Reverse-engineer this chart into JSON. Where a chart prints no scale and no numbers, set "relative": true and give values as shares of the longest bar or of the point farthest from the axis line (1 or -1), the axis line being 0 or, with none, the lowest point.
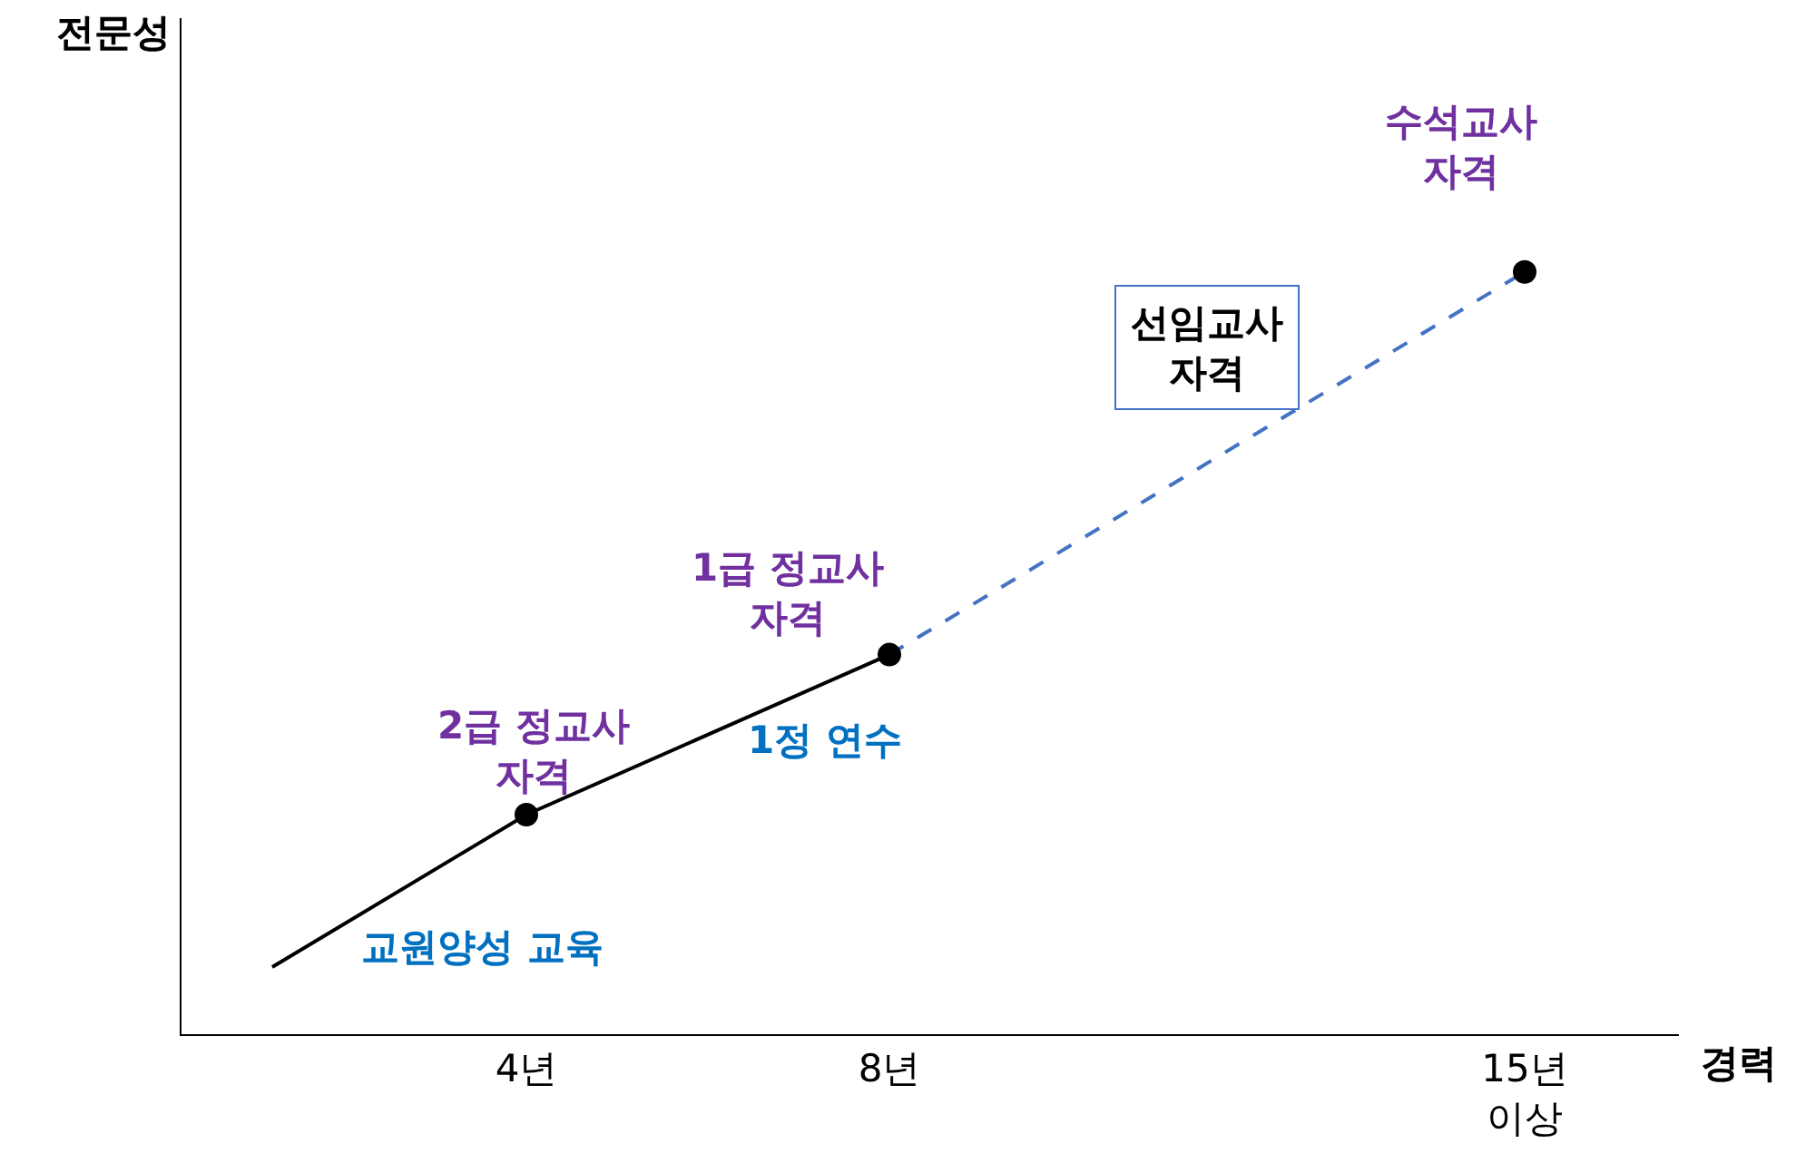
{
  "chart_data": {
    "type": "line",
    "relative": true,
    "xlabel": "경력",
    "xlim": [
      0.2,
      16.7
    ],
    "xticks": [
      {
        "value": 4,
        "label": "4년"
      },
      {
        "value": 8,
        "label": "8년"
      },
      {
        "value": 15,
        "label": "15년\n이상"
      }
    ],
    "series": [
      {
        "color": "#000000",
        "x": [
          1.2,
          4,
          8
        ],
        "values": [
          0.088,
          0.288,
          0.498
        ],
        "marker": "none",
        "line_style": "solid"
      },
      {
        "color": "#4472c4",
        "x": [
          8,
          15
        ],
        "values": [
          0.498,
          1
        ],
        "marker": "none",
        "line_style": "dashed"
      },
      {
        "type": "scatter",
        "color": "#000000",
        "x": [
          4,
          8,
          15
        ],
        "values": [
          0.288,
          0.498,
          1
        ],
        "marker": "circle"
      }
    ],
    "annotations": [
      "전문성",
      "2급 정교사\n자격",
      "1급 정교사\n자격",
      "1정 연수",
      "교원양성 교육",
      "선임교사\n자격",
      "수석교사\n자격"
    ]
  }
}
